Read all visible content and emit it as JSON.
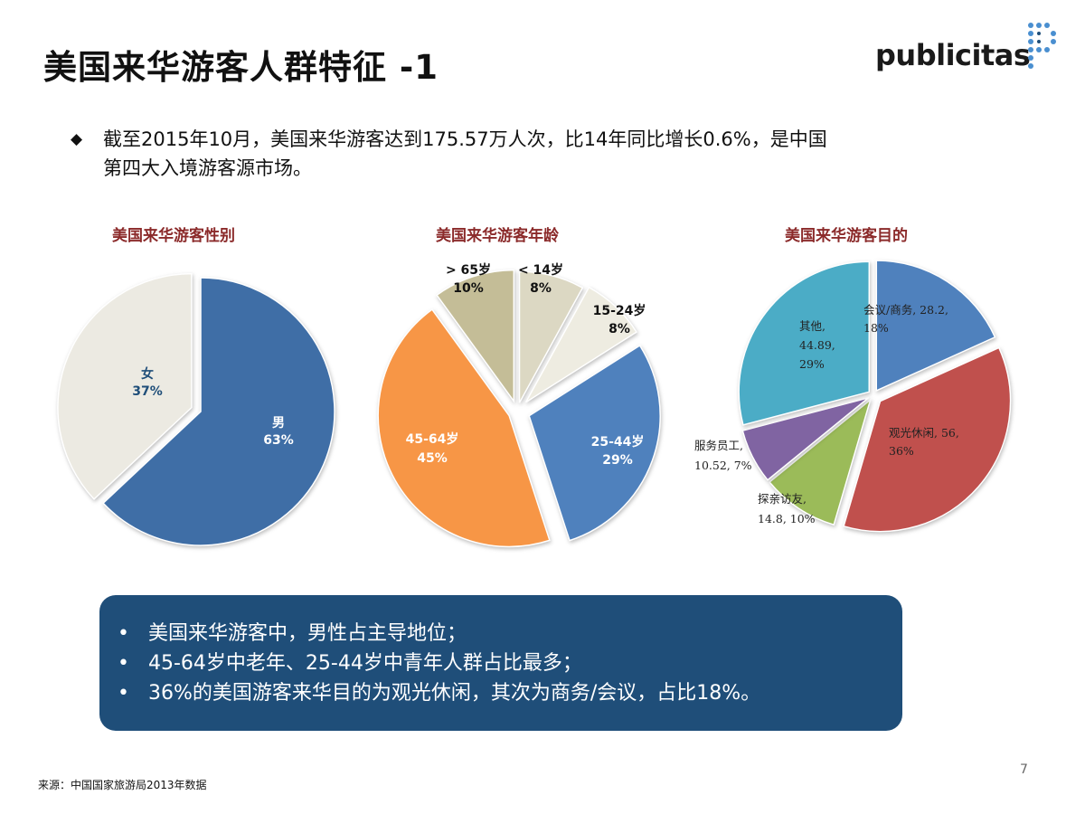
{
  "page": {
    "title": "美国来华游客人群特征 -1",
    "logo_text": "publicitas",
    "intro_bullet": "◆",
    "intro_text": "截至2015年10月，美国来华游客达到175.57万人次，比14年同比增长0.6%，是中国第四大入境游客源市场。",
    "page_number": "7",
    "source": "来源：中国国家旅游局2013年数据"
  },
  "summary": {
    "bullet": "•",
    "items": [
      "美国来华游客中，男性占主导地位；",
      "45-64岁中老年、25-44岁中青年人群占比最多；",
      "36%的美国游客来华目的为观光休闲，其次为商务/会议，占比18%。"
    ]
  },
  "colors": {
    "title_red": "#8b2a2a",
    "male": "#3f6ea6",
    "female": "#eceae2",
    "summary_bg": "#1f4e79"
  },
  "chart_data": [
    {
      "type": "pie",
      "title": "美国来华游客性别",
      "slices": [
        {
          "name": "男",
          "value": 63,
          "label": "63%",
          "color": "#3f6ea6"
        },
        {
          "name": "女",
          "value": 37,
          "label": "37%",
          "color": "#eceae2"
        }
      ]
    },
    {
      "type": "pie",
      "title": "美国来华游客年龄",
      "slices": [
        {
          "name": "< 14岁",
          "value": 8,
          "label": "8%",
          "color": "#dcd8c3"
        },
        {
          "name": "15-24岁",
          "value": 8,
          "label": "8%",
          "color": "#eeece1"
        },
        {
          "name": "25-44岁",
          "value": 29,
          "label": "29%",
          "color": "#4f81bd"
        },
        {
          "name": "45-64岁",
          "value": 45,
          "label": "45%",
          "color": "#f79646"
        },
        {
          "name": "> 65岁",
          "value": 10,
          "label": "10%",
          "color": "#c4bd97"
        }
      ]
    },
    {
      "type": "pie",
      "title": "美国来华游客目的",
      "slices": [
        {
          "name": "会议/商务",
          "value": 28.2,
          "label": "会议/商务, 28.2, 18%",
          "color": "#4f81bd"
        },
        {
          "name": "观光休闲",
          "value": 56,
          "label": "观光休闲, 56, 36%",
          "color": "#c0504d"
        },
        {
          "name": "探亲访友",
          "value": 14.8,
          "label": "探亲访友, 14.8, 10%",
          "color": "#9bbb59"
        },
        {
          "name": "服务员工",
          "value": 10.52,
          "label": "服务员工, 10.52, 7%",
          "color": "#8064a2"
        },
        {
          "name": "其他",
          "value": 44.89,
          "label": "其他, 44.89, 29%",
          "color": "#4bacc6"
        }
      ]
    }
  ]
}
